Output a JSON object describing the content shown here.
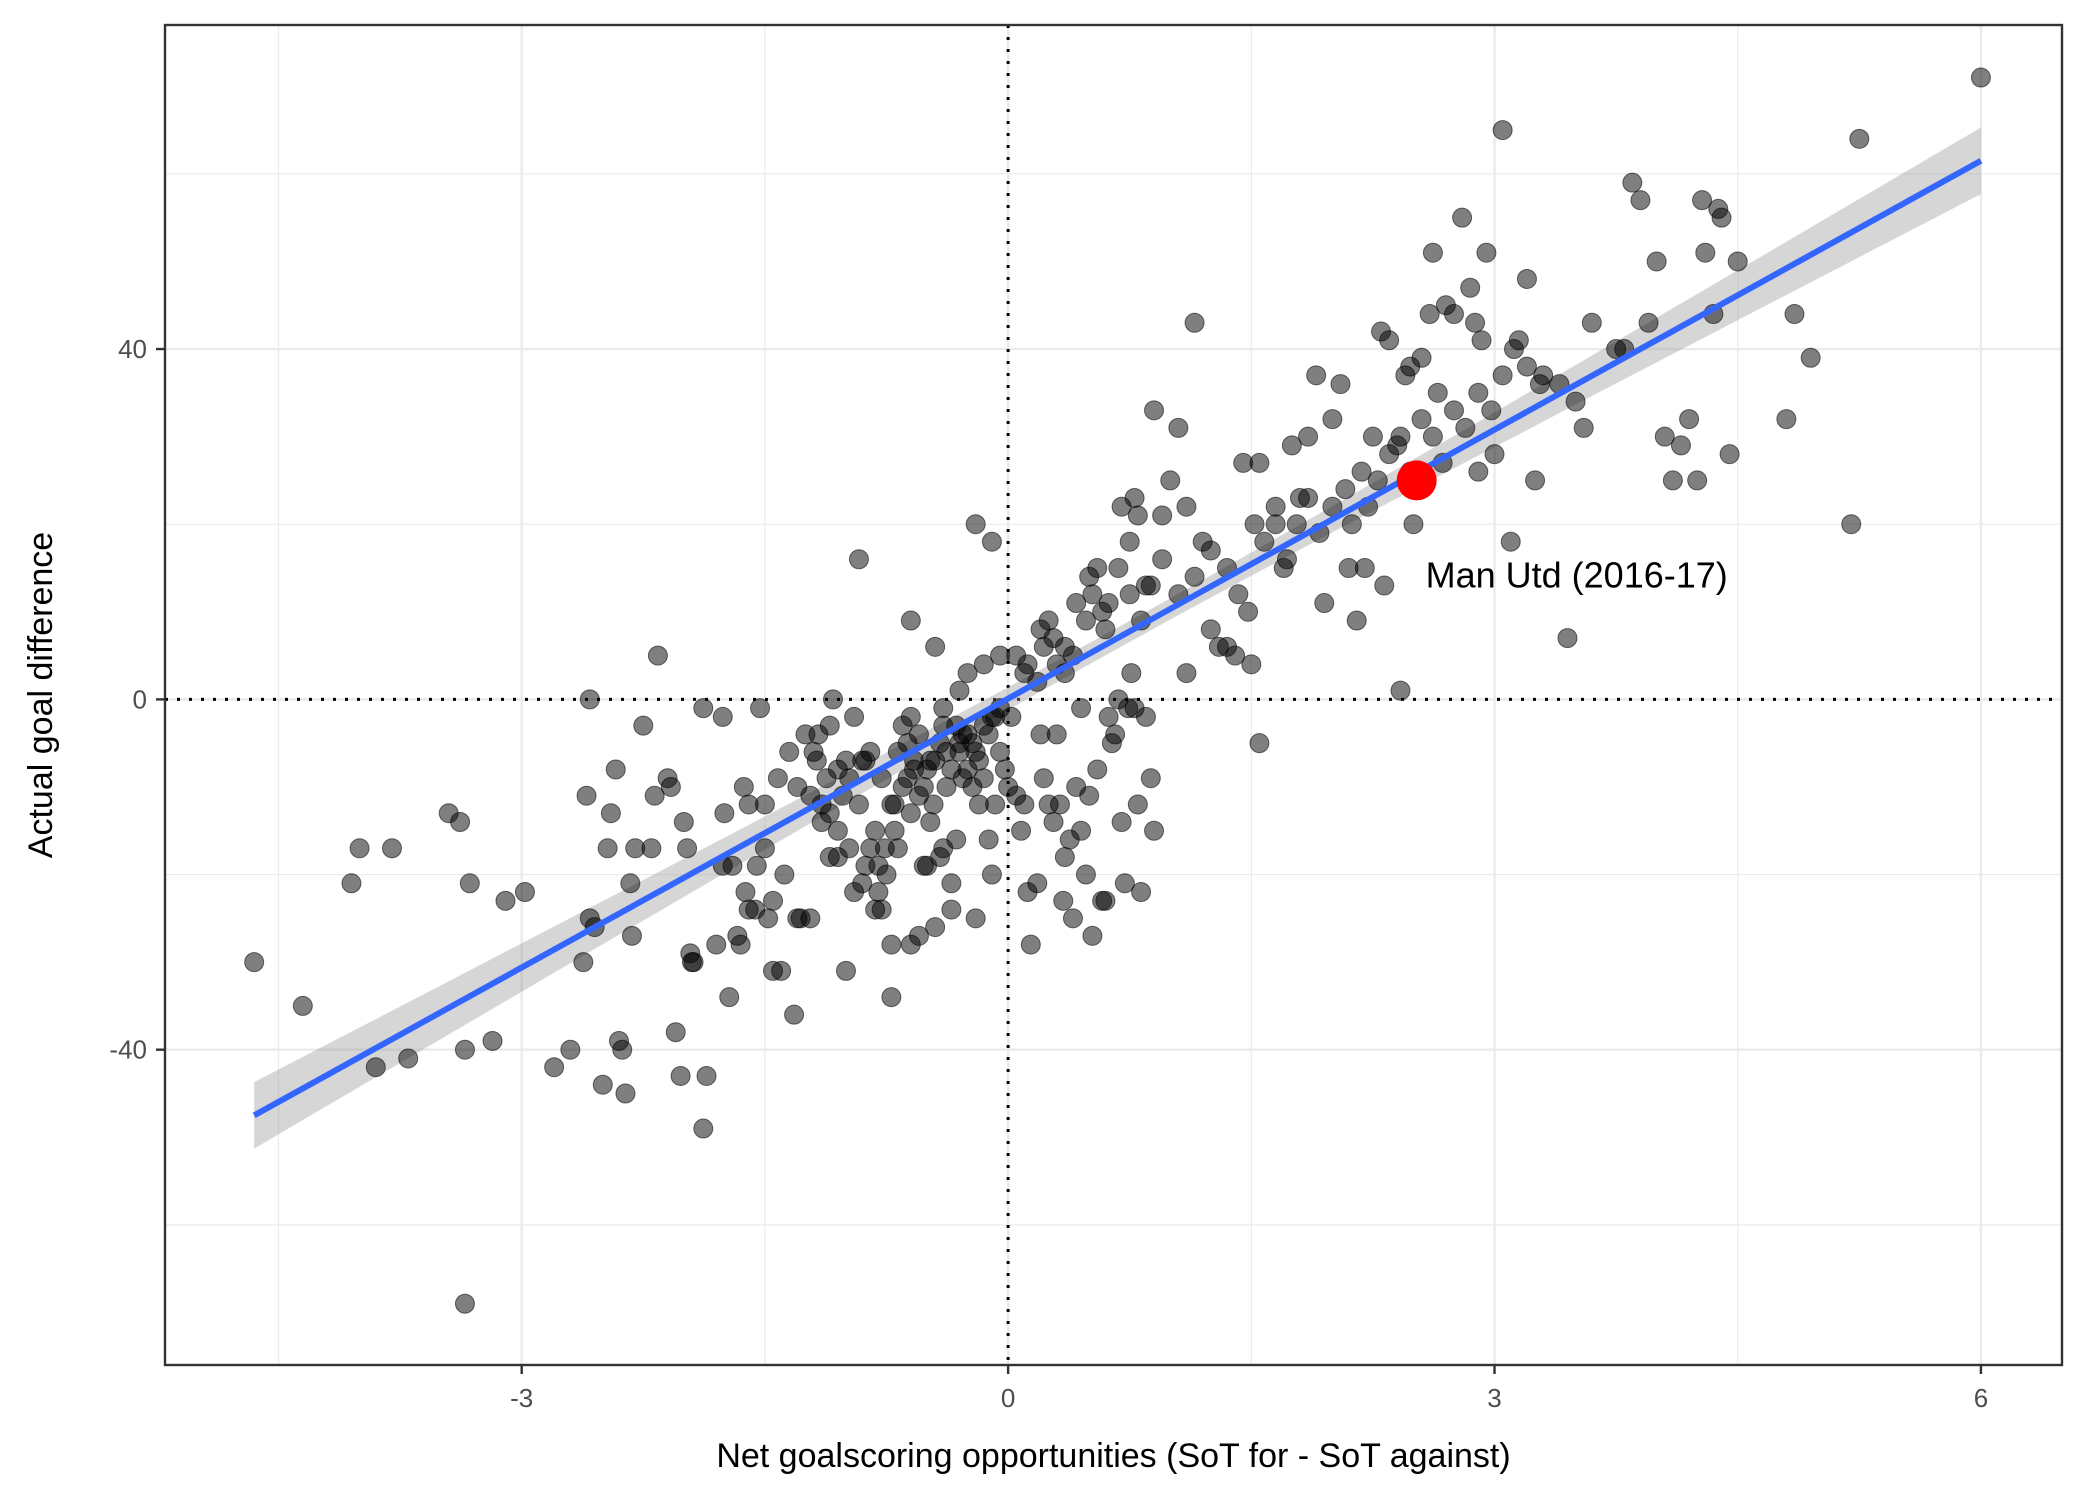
{
  "chart_data": {
    "type": "scatter",
    "title": "",
    "xlabel": "Net goalscoring opportunities (SoT for - SoT against)",
    "ylabel": "Actual goal difference",
    "xlim": [
      -5.2,
      6.5
    ],
    "ylim": [
      -76,
      77
    ],
    "x_ticks": [
      -3,
      0,
      3,
      6
    ],
    "x_tick_labels": [
      "-3",
      "0",
      "3",
      "6"
    ],
    "y_ticks": [
      -40,
      0,
      40
    ],
    "y_tick_labels": [
      "-40",
      "0",
      "40"
    ],
    "grid": true,
    "reference_lines": {
      "x": 0,
      "y": 0,
      "style": "dotted"
    },
    "regression": {
      "x": [
        -4.65,
        6.0
      ],
      "y": [
        -47.5,
        61.5
      ],
      "ci_halfwidth_ends": 3.8,
      "ci_halfwidth_center": 1.2,
      "color": "#3366FF"
    },
    "highlight": {
      "x": 2.52,
      "y": 25,
      "label": "Man Utd (2016-17)",
      "color": "#FF0000"
    },
    "point_color": "#000000",
    "point_opacity": 0.5,
    "points": [
      [
        -4.65,
        -30
      ],
      [
        -4.35,
        -35
      ],
      [
        -4.05,
        -21
      ],
      [
        -4.0,
        -17
      ],
      [
        -3.9,
        -42
      ],
      [
        -3.7,
        -41
      ],
      [
        -3.8,
        -17
      ],
      [
        -3.45,
        -13
      ],
      [
        -3.38,
        -14
      ],
      [
        -3.32,
        -21
      ],
      [
        -3.35,
        -40
      ],
      [
        -3.18,
        -39
      ],
      [
        -3.1,
        -23
      ],
      [
        -2.98,
        -22
      ],
      [
        -3.35,
        -69
      ],
      [
        -2.8,
        -42
      ],
      [
        -2.7,
        -40
      ],
      [
        -2.62,
        -30
      ],
      [
        -2.6,
        -11
      ],
      [
        -2.58,
        -25
      ],
      [
        -2.58,
        0
      ],
      [
        -2.55,
        -26
      ],
      [
        -2.5,
        -44
      ],
      [
        -2.47,
        -17
      ],
      [
        -2.45,
        -13
      ],
      [
        -2.42,
        -8
      ],
      [
        -2.4,
        -39
      ],
      [
        -2.38,
        -40
      ],
      [
        -2.36,
        -45
      ],
      [
        -2.32,
        -27
      ],
      [
        -2.33,
        -21
      ],
      [
        -2.3,
        -17
      ],
      [
        -2.25,
        -3
      ],
      [
        -2.2,
        -17
      ],
      [
        -2.18,
        -11
      ],
      [
        -2.16,
        5
      ],
      [
        -2.1,
        -9
      ],
      [
        -2.08,
        -10
      ],
      [
        -2.05,
        -38
      ],
      [
        -2.02,
        -43
      ],
      [
        -2.0,
        -14
      ],
      [
        -1.98,
        -17
      ],
      [
        -1.96,
        -29
      ],
      [
        -1.95,
        -30
      ],
      [
        -1.94,
        -30
      ],
      [
        -1.88,
        -49
      ],
      [
        -1.88,
        -1
      ],
      [
        -1.86,
        -43
      ],
      [
        -1.8,
        -28
      ],
      [
        -1.76,
        -19
      ],
      [
        -1.76,
        -2
      ],
      [
        -1.75,
        -13
      ],
      [
        -1.72,
        -34
      ],
      [
        -1.7,
        -19
      ],
      [
        -1.67,
        -27
      ],
      [
        -1.65,
        -28
      ],
      [
        -1.62,
        -22
      ],
      [
        -1.63,
        -10
      ],
      [
        -1.6,
        -12
      ],
      [
        -1.56,
        -24
      ],
      [
        -1.55,
        -19
      ],
      [
        -1.53,
        -1
      ],
      [
        -1.5,
        -12
      ],
      [
        -1.5,
        -17
      ],
      [
        -1.48,
        -25
      ],
      [
        -1.45,
        -31
      ],
      [
        -1.42,
        -9
      ],
      [
        -1.4,
        -31
      ],
      [
        -1.38,
        -20
      ],
      [
        -1.32,
        -36
      ],
      [
        -1.3,
        -25
      ],
      [
        -1.28,
        -25
      ],
      [
        -1.22,
        -11
      ],
      [
        -1.22,
        -25
      ],
      [
        -1.2,
        -6
      ],
      [
        -1.18,
        -7
      ],
      [
        -1.17,
        -4
      ],
      [
        -1.15,
        -12
      ],
      [
        -1.12,
        -9
      ],
      [
        -1.1,
        -3
      ],
      [
        -1.1,
        -13
      ],
      [
        -1.08,
        0
      ],
      [
        -1.05,
        -8
      ],
      [
        -1.02,
        -11
      ],
      [
        -1.0,
        -31
      ],
      [
        -1.0,
        -7
      ],
      [
        -0.98,
        -9
      ],
      [
        -0.95,
        -2
      ],
      [
        -0.92,
        16
      ],
      [
        -0.9,
        -7
      ],
      [
        -0.88,
        -7
      ],
      [
        -0.85,
        -6
      ],
      [
        -0.82,
        -24
      ],
      [
        -0.8,
        -22
      ],
      [
        -0.78,
        -24
      ],
      [
        -0.76,
        -17
      ],
      [
        -0.72,
        -28
      ],
      [
        -0.72,
        -34
      ],
      [
        -0.7,
        -15
      ],
      [
        -0.68,
        -17
      ],
      [
        -0.65,
        -3
      ],
      [
        -0.62,
        -5
      ],
      [
        -0.6,
        -28
      ],
      [
        -0.6,
        -2
      ],
      [
        -0.58,
        -8
      ],
      [
        -0.55,
        -4
      ],
      [
        -0.55,
        -27
      ],
      [
        -0.52,
        -19
      ],
      [
        -0.5,
        -19
      ],
      [
        -0.48,
        -14
      ],
      [
        -0.48,
        -7
      ],
      [
        -0.45,
        -26
      ],
      [
        -0.42,
        -18
      ],
      [
        -0.4,
        -3
      ],
      [
        -0.4,
        -17
      ],
      [
        -0.38,
        -10
      ],
      [
        -0.35,
        -21
      ],
      [
        -0.35,
        -24
      ],
      [
        -0.32,
        -16
      ],
      [
        -0.3,
        -6
      ],
      [
        -0.28,
        -4
      ],
      [
        -0.25,
        -8
      ],
      [
        -0.22,
        -10
      ],
      [
        -0.2,
        -25
      ],
      [
        -0.18,
        -12
      ],
      [
        -0.15,
        -9
      ],
      [
        -0.12,
        -16
      ],
      [
        -0.1,
        -20
      ],
      [
        -0.08,
        -12
      ],
      [
        -0.05,
        -6
      ],
      [
        -0.02,
        -8
      ],
      [
        0.0,
        -10
      ],
      [
        0.02,
        -2
      ],
      [
        0.05,
        -11
      ],
      [
        0.08,
        -15
      ],
      [
        0.1,
        -12
      ],
      [
        0.12,
        -22
      ],
      [
        0.14,
        -28
      ],
      [
        0.18,
        -21
      ],
      [
        0.2,
        -4
      ],
      [
        0.22,
        -9
      ],
      [
        0.25,
        -12
      ],
      [
        0.28,
        -14
      ],
      [
        0.3,
        -4
      ],
      [
        0.32,
        -12
      ],
      [
        0.34,
        -23
      ],
      [
        0.35,
        -18
      ],
      [
        0.38,
        -16
      ],
      [
        0.4,
        -25
      ],
      [
        0.42,
        -10
      ],
      [
        0.45,
        -15
      ],
      [
        0.48,
        -20
      ],
      [
        0.5,
        -11
      ],
      [
        0.52,
        -27
      ],
      [
        0.55,
        -8
      ],
      [
        0.58,
        -23
      ],
      [
        0.6,
        -23
      ],
      [
        0.62,
        -2
      ],
      [
        0.64,
        -5
      ],
      [
        0.66,
        -4
      ],
      [
        0.68,
        0
      ],
      [
        0.7,
        -14
      ],
      [
        0.72,
        -21
      ],
      [
        0.74,
        -1
      ],
      [
        0.76,
        3
      ],
      [
        0.78,
        -1
      ],
      [
        0.8,
        -12
      ],
      [
        0.82,
        -22
      ],
      [
        0.85,
        -2
      ],
      [
        0.88,
        -9
      ],
      [
        0.9,
        -15
      ],
      [
        -1.6,
        -24
      ],
      [
        -1.45,
        -23
      ],
      [
        -1.35,
        -6
      ],
      [
        -1.25,
        -4
      ],
      [
        -1.3,
        -10
      ],
      [
        -1.15,
        -14
      ],
      [
        -1.05,
        -18
      ],
      [
        -0.95,
        -22
      ],
      [
        -0.9,
        -21
      ],
      [
        -0.85,
        -17
      ],
      [
        -0.8,
        -19
      ],
      [
        -0.75,
        -20
      ],
      [
        -0.7,
        -12
      ],
      [
        -0.65,
        -10
      ],
      [
        -0.6,
        -13
      ],
      [
        -0.55,
        -11
      ],
      [
        -0.5,
        -8
      ],
      [
        -0.45,
        -7
      ],
      [
        -0.4,
        -1
      ],
      [
        -0.35,
        -8
      ],
      [
        -0.3,
        -5
      ],
      [
        -0.25,
        -4
      ],
      [
        -0.2,
        -6
      ],
      [
        -0.15,
        -3
      ],
      [
        -0.1,
        -2
      ],
      [
        -0.05,
        -1
      ],
      [
        -0.6,
        9
      ],
      [
        -0.45,
        6
      ],
      [
        -0.3,
        1
      ],
      [
        -0.25,
        3
      ],
      [
        -0.2,
        20
      ],
      [
        -0.15,
        4
      ],
      [
        -0.1,
        18
      ],
      [
        -0.05,
        5
      ],
      [
        0.05,
        5
      ],
      [
        0.1,
        3
      ],
      [
        0.2,
        8
      ],
      [
        0.25,
        9
      ],
      [
        0.3,
        4
      ],
      [
        0.35,
        6
      ],
      [
        0.4,
        5
      ],
      [
        0.45,
        -1
      ],
      [
        0.5,
        14
      ],
      [
        0.55,
        15
      ],
      [
        0.6,
        8
      ],
      [
        0.7,
        22
      ],
      [
        0.75,
        18
      ],
      [
        0.78,
        23
      ],
      [
        0.8,
        21
      ],
      [
        0.85,
        13
      ],
      [
        0.9,
        33
      ],
      [
        0.95,
        21
      ],
      [
        1.0,
        25
      ],
      [
        1.05,
        31
      ],
      [
        1.1,
        22
      ],
      [
        1.1,
        3
      ],
      [
        1.15,
        43
      ],
      [
        1.2,
        18
      ],
      [
        1.25,
        8
      ],
      [
        1.3,
        6
      ],
      [
        1.35,
        6
      ],
      [
        1.4,
        5
      ],
      [
        1.45,
        27
      ],
      [
        1.5,
        4
      ],
      [
        1.55,
        -5
      ],
      [
        1.55,
        27
      ],
      [
        1.65,
        20
      ],
      [
        1.7,
        15
      ],
      [
        1.75,
        29
      ],
      [
        1.8,
        23
      ],
      [
        1.85,
        30
      ],
      [
        1.9,
        37
      ],
      [
        1.95,
        11
      ],
      [
        2.0,
        32
      ],
      [
        2.05,
        36
      ],
      [
        2.1,
        15
      ],
      [
        2.15,
        9
      ],
      [
        2.2,
        15
      ],
      [
        2.25,
        30
      ],
      [
        2.3,
        42
      ],
      [
        2.32,
        13
      ],
      [
        2.35,
        41
      ],
      [
        2.4,
        29
      ],
      [
        2.42,
        1
      ],
      [
        2.45,
        37
      ],
      [
        2.48,
        38
      ],
      [
        2.5,
        20
      ],
      [
        2.55,
        39
      ],
      [
        2.6,
        44
      ],
      [
        2.62,
        51
      ],
      [
        2.65,
        35
      ],
      [
        2.7,
        45
      ],
      [
        2.75,
        44
      ],
      [
        2.8,
        55
      ],
      [
        2.85,
        47
      ],
      [
        2.88,
        43
      ],
      [
        2.9,
        26
      ],
      [
        2.92,
        41
      ],
      [
        2.95,
        51
      ],
      [
        3.0,
        28
      ],
      [
        3.05,
        65
      ],
      [
        3.1,
        18
      ],
      [
        3.15,
        41
      ],
      [
        3.2,
        48
      ],
      [
        3.25,
        25
      ],
      [
        3.28,
        36
      ],
      [
        3.3,
        37
      ],
      [
        3.4,
        36
      ],
      [
        3.45,
        7
      ],
      [
        3.5,
        34
      ],
      [
        3.55,
        31
      ],
      [
        3.6,
        43
      ],
      [
        3.75,
        40
      ],
      [
        3.8,
        40
      ],
      [
        3.85,
        59
      ],
      [
        3.9,
        57
      ],
      [
        3.95,
        43
      ],
      [
        4.0,
        50
      ],
      [
        4.05,
        30
      ],
      [
        4.1,
        25
      ],
      [
        4.15,
        29
      ],
      [
        4.2,
        32
      ],
      [
        4.25,
        25
      ],
      [
        4.28,
        57
      ],
      [
        4.3,
        51
      ],
      [
        4.35,
        44
      ],
      [
        4.38,
        56
      ],
      [
        4.4,
        55
      ],
      [
        4.45,
        28
      ],
      [
        4.5,
        50
      ],
      [
        4.8,
        32
      ],
      [
        4.85,
        44
      ],
      [
        4.95,
        39
      ],
      [
        5.2,
        20
      ],
      [
        5.25,
        64
      ],
      [
        6.0,
        71
      ],
      [
        -1.1,
        -18
      ],
      [
        -1.05,
        -15
      ],
      [
        -0.98,
        -17
      ],
      [
        -0.92,
        -12
      ],
      [
        -0.88,
        -19
      ],
      [
        -0.82,
        -15
      ],
      [
        -0.78,
        -9
      ],
      [
        -0.72,
        -12
      ],
      [
        -0.68,
        -6
      ],
      [
        -0.62,
        -9
      ],
      [
        -0.58,
        -7
      ],
      [
        -0.52,
        -10
      ],
      [
        -0.46,
        -12
      ],
      [
        -0.42,
        -5
      ],
      [
        -0.38,
        -6
      ],
      [
        -0.32,
        -3
      ],
      [
        -0.28,
        -9
      ],
      [
        -0.22,
        -5
      ],
      [
        -0.18,
        -7
      ],
      [
        -0.12,
        -4
      ],
      [
        -0.08,
        -2
      ],
      [
        0.12,
        4
      ],
      [
        0.18,
        2
      ],
      [
        0.22,
        6
      ],
      [
        0.28,
        7
      ],
      [
        0.35,
        3
      ],
      [
        0.42,
        11
      ],
      [
        0.48,
        9
      ],
      [
        0.52,
        12
      ],
      [
        0.58,
        10
      ],
      [
        0.62,
        11
      ],
      [
        0.68,
        15
      ],
      [
        0.75,
        12
      ],
      [
        0.82,
        9
      ],
      [
        0.88,
        13
      ],
      [
        0.95,
        16
      ],
      [
        1.05,
        12
      ],
      [
        1.15,
        14
      ],
      [
        1.25,
        17
      ],
      [
        1.35,
        15
      ],
      [
        1.42,
        12
      ],
      [
        1.48,
        10
      ],
      [
        1.52,
        20
      ],
      [
        1.58,
        18
      ],
      [
        1.65,
        22
      ],
      [
        1.72,
        16
      ],
      [
        1.78,
        20
      ],
      [
        1.85,
        23
      ],
      [
        1.92,
        19
      ],
      [
        2.0,
        22
      ],
      [
        2.08,
        24
      ],
      [
        2.12,
        20
      ],
      [
        2.18,
        26
      ],
      [
        2.22,
        22
      ],
      [
        2.28,
        25
      ],
      [
        2.35,
        28
      ],
      [
        2.42,
        30
      ],
      [
        2.48,
        26
      ],
      [
        2.55,
        32
      ],
      [
        2.62,
        30
      ],
      [
        2.68,
        27
      ],
      [
        2.75,
        33
      ],
      [
        2.82,
        31
      ],
      [
        2.9,
        35
      ],
      [
        2.98,
        33
      ],
      [
        3.05,
        37
      ],
      [
        3.12,
        40
      ],
      [
        3.2,
        38
      ]
    ]
  }
}
